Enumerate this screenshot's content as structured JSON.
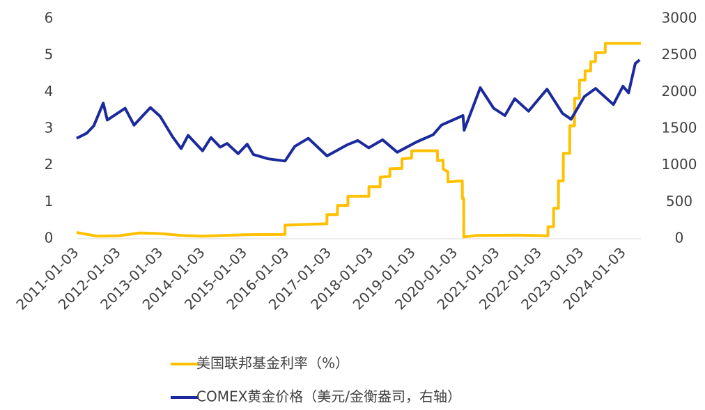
{
  "chart_data": {
    "type": "line",
    "xticks": [
      "2011-01-03",
      "2012-01-03",
      "2013-01-03",
      "2014-01-03",
      "2015-01-03",
      "2016-01-03",
      "2017-01-03",
      "2018-01-03",
      "2019-01-03",
      "2020-01-03",
      "2021-01-03",
      "2022-01-03",
      "2023-01-03",
      "2024-01-03"
    ],
    "xlim": [
      "2011-01-03",
      "2024-05-31"
    ],
    "ylim": [
      0,
      6
    ],
    "yticks": [
      0,
      1,
      2,
      3,
      4,
      5,
      6
    ],
    "y2lim": [
      0,
      3000
    ],
    "y2ticks": [
      0,
      500,
      1000,
      1500,
      2000,
      2500,
      3000
    ],
    "legend": "bottom",
    "series": [
      {
        "name": "美国联邦基金利率（%）",
        "color": "#FFC000",
        "x": [
          "2011-01-03",
          "2011-07-01",
          "2012-01-03",
          "2012-07-02",
          "2013-01-02",
          "2013-07-01",
          "2014-01-02",
          "2014-07-01",
          "2015-01-02",
          "2015-12-16",
          "2015-12-17",
          "2016-12-14",
          "2016-12-15",
          "2017-03-15",
          "2017-03-16",
          "2017-06-14",
          "2017-06-15",
          "2017-12-13",
          "2017-12-14",
          "2018-03-21",
          "2018-03-22",
          "2018-06-13",
          "2018-06-14",
          "2018-09-26",
          "2018-09-27",
          "2018-12-19",
          "2018-12-20",
          "2019-07-31",
          "2019-08-01",
          "2019-09-18",
          "2019-09-19",
          "2019-10-30",
          "2019-10-31",
          "2020-03-03",
          "2020-03-04",
          "2020-03-15",
          "2020-03-16",
          "2020-07-01",
          "2021-07-01",
          "2022-03-16",
          "2022-03-17",
          "2022-05-04",
          "2022-05-05",
          "2022-06-15",
          "2022-06-16",
          "2022-07-27",
          "2022-07-28",
          "2022-09-21",
          "2022-09-22",
          "2022-11-02",
          "2022-11-03",
          "2022-12-14",
          "2022-12-15",
          "2023-02-01",
          "2023-02-02",
          "2023-03-22",
          "2023-03-23",
          "2023-05-03",
          "2023-05-04",
          "2023-07-26",
          "2023-07-27",
          "2024-05-31"
        ],
        "values": [
          0.17,
          0.07,
          0.08,
          0.16,
          0.14,
          0.09,
          0.07,
          0.09,
          0.11,
          0.12,
          0.37,
          0.41,
          0.66,
          0.66,
          0.91,
          0.91,
          1.16,
          1.16,
          1.42,
          1.42,
          1.68,
          1.7,
          1.91,
          1.92,
          2.18,
          2.2,
          2.4,
          2.4,
          2.13,
          2.14,
          1.9,
          1.83,
          1.55,
          1.58,
          1.1,
          1.1,
          0.05,
          0.09,
          0.1,
          0.08,
          0.33,
          0.33,
          0.83,
          0.83,
          1.58,
          1.58,
          2.33,
          2.33,
          3.08,
          3.08,
          3.83,
          3.83,
          4.33,
          4.33,
          4.58,
          4.58,
          4.83,
          4.83,
          5.08,
          5.08,
          5.33,
          5.33
        ]
      },
      {
        "name": "COMEX黄金价格（美元/金衡盎司，右轴）",
        "color": "#1A2A9C",
        "axis": "y2",
        "x": [
          "2011-01-03",
          "2011-04-01",
          "2011-06-01",
          "2011-08-22",
          "2011-09-26",
          "2012-02-28",
          "2012-05-15",
          "2012-10-04",
          "2012-12-28",
          "2013-04-15",
          "2013-06-28",
          "2013-08-28",
          "2013-12-31",
          "2014-03-14",
          "2014-06-02",
          "2014-08-01",
          "2014-11-05",
          "2015-01-22",
          "2015-03-17",
          "2015-07-24",
          "2015-12-17",
          "2016-03-10",
          "2016-07-06",
          "2016-12-15",
          "2017-06-06",
          "2017-09-08",
          "2017-12-12",
          "2018-04-11",
          "2018-08-16",
          "2019-01-30",
          "2019-06-25",
          "2019-09-04",
          "2020-03-09",
          "2020-03-19",
          "2020-08-06",
          "2020-11-30",
          "2021-03-08",
          "2021-06-01",
          "2021-09-29",
          "2022-03-08",
          "2022-07-21",
          "2022-10-03",
          "2023-01-26",
          "2023-05-04",
          "2023-10-05",
          "2023-12-27",
          "2024-02-14",
          "2024-04-12",
          "2024-05-20"
        ],
        "values": [
          1370,
          1440,
          1540,
          1850,
          1620,
          1780,
          1550,
          1790,
          1670,
          1390,
          1230,
          1410,
          1200,
          1380,
          1250,
          1300,
          1160,
          1290,
          1150,
          1090,
          1060,
          1260,
          1370,
          1130,
          1280,
          1340,
          1240,
          1350,
          1180,
          1320,
          1420,
          1550,
          1680,
          1480,
          2060,
          1780,
          1680,
          1910,
          1740,
          2040,
          1710,
          1630,
          1940,
          2050,
          1830,
          2080,
          1990,
          2390,
          2440
        ]
      }
    ]
  }
}
